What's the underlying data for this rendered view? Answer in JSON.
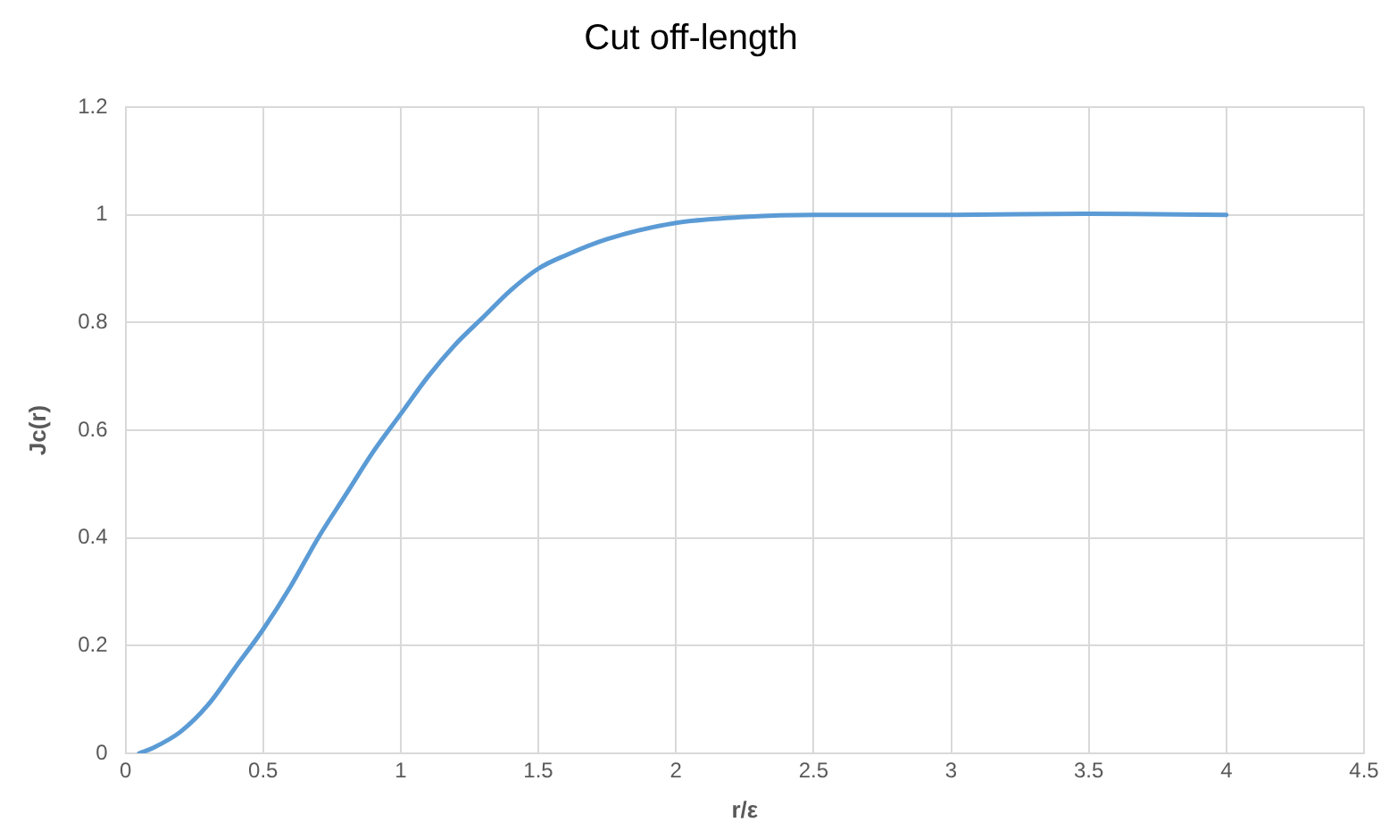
{
  "chart_data": {
    "type": "line",
    "title": "Cut off-length",
    "xlabel": "r/ε",
    "ylabel": "Jc(r)",
    "x": [
      0.05,
      0.1,
      0.2,
      0.3,
      0.4,
      0.5,
      0.6,
      0.7,
      0.8,
      0.9,
      1,
      1.1,
      1.2,
      1.3,
      1.4,
      1.5,
      1.6,
      1.75,
      2,
      2.25,
      2.5,
      3,
      3.5,
      4
    ],
    "series": [
      {
        "color": "#5b9bd5",
        "values": [
          0,
          0.01,
          0.04,
          0.09,
          0.16,
          0.23,
          0.31,
          0.4,
          0.48,
          0.56,
          0.63,
          0.7,
          0.76,
          0.81,
          0.86,
          0.9,
          0.925,
          0.955,
          0.985,
          0.996,
          1,
          1,
          1.002,
          1
        ]
      }
    ],
    "xlim": [
      0,
      4.5
    ],
    "xticks": [
      0,
      0.5,
      1,
      1.5,
      2,
      2.5,
      3,
      3.5,
      4,
      4.5
    ],
    "ylim": [
      0,
      1.2
    ],
    "yticks": [
      0,
      0.2,
      0.4,
      0.6,
      0.8,
      1,
      1.2
    ],
    "grid": true,
    "legend": false,
    "marker": "none",
    "line_style": "solid"
  }
}
